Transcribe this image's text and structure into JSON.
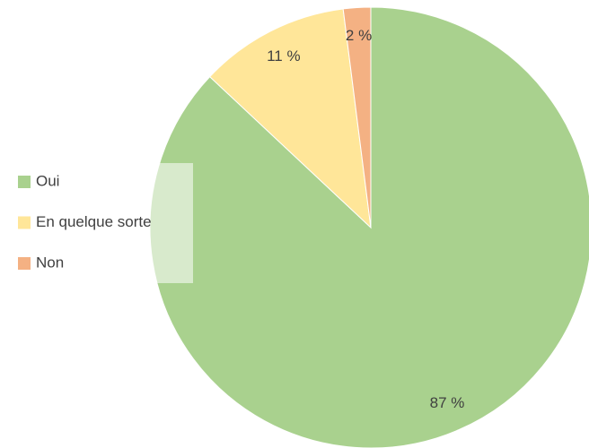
{
  "chart_data": {
    "type": "pie",
    "categories": [
      "Oui",
      "En quelque sorte",
      "Non"
    ],
    "values": [
      87,
      11,
      2
    ],
    "value_labels": [
      "87 %",
      "11 %",
      "2 %"
    ],
    "colors": [
      "#a9d18e",
      "#ffe699",
      "#f4b183"
    ],
    "legend": "left"
  }
}
